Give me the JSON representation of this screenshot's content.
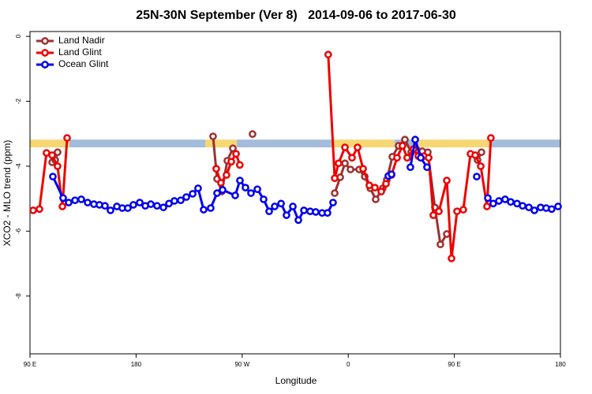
{
  "chart_data": {
    "type": "line",
    "title": "25N-30N September (Ver 8)   2014-09-06 to 2017-06-30",
    "x_label": "Longitude",
    "y_label": "XCO2 - MLO trend (ppm)",
    "xlim": [
      90,
      540
    ],
    "ylim": [
      -9.78,
      0.15
    ],
    "xticks": [
      {
        "value": 90,
        "label": "90 E"
      },
      180,
      {
        "value": 270,
        "label": "90 W"
      },
      {
        "value": 360,
        "label": "0"
      },
      {
        "value": 450,
        "label": "90 E"
      },
      {
        "value": 540,
        "label": "180"
      }
    ],
    "yticks": [
      0,
      -2,
      -4,
      -6,
      -8
    ],
    "legend": "top-left",
    "band": {
      "ylim": [
        -3.42,
        -3.18
      ],
      "segments": [
        {
          "from": 90,
          "to": 123.5,
          "color": "#f7d774"
        },
        {
          "from": 123.5,
          "to": 238.7,
          "color": "#a4bcdc"
        },
        {
          "from": 238.7,
          "to": 265.4,
          "color": "#f7d774"
        },
        {
          "from": 265.4,
          "to": 345.8,
          "color": "#a4bcdc"
        },
        {
          "from": 345.8,
          "to": 399.4,
          "color": "#f7d774"
        },
        {
          "from": 399.4,
          "to": 419.4,
          "color": "#a4bcdc"
        },
        {
          "from": 419.4,
          "to": 479.7,
          "color": "#f7d774"
        },
        {
          "from": 479.7,
          "to": 540,
          "color": "#a4bcdc"
        }
      ]
    },
    "series": [
      {
        "name": "Land Nadir",
        "color": "#9e3030",
        "x": [
          108.8,
          111.4,
          113.4,
          null,
          245.3,
          248.7,
          252.7,
          257.4,
          262.1,
          null,
          278.8,
          null,
          348.5,
          353.2,
          357.2,
          361.9,
          369.3,
          374,
          378.7,
          383.3,
          389.3,
          392.7,
          397.4,
          402.7,
          408.1,
          413.4,
          418.1,
          422.8,
          427.5,
          433.5,
          438.2,
          443.6,
          null,
          469.7,
          473
        ],
        "values": [
          -3.88,
          -3.81,
          -3.57,
          null,
          -3.08,
          -4.39,
          -4.78,
          -3.83,
          -3.45,
          null,
          -3.01,
          null,
          -4.83,
          -4.34,
          -3.91,
          -4.1,
          -4.1,
          -4.32,
          -4.68,
          -5.02,
          -4.68,
          -4.42,
          -3.71,
          -3.37,
          -3.18,
          -3.57,
          -3.5,
          -3.54,
          -3.57,
          -5.27,
          -6.41,
          -6.09,
          null,
          -3.81,
          -3.57
        ]
      },
      {
        "name": "Land Glint",
        "color": "#ee0000",
        "x": [
          92.7,
          98,
          104,
          108.8,
          113.4,
          117.5,
          121.5,
          null,
          248,
          252,
          256.7,
          260.8,
          264.8,
          268,
          null,
          343,
          348.5,
          351.8,
          357.2,
          363.2,
          367.9,
          372.6,
          377.9,
          382.6,
          388,
          392,
          396.7,
          401.4,
          406,
          410,
          415.4,
          419.4,
          424.1,
          428.2,
          432.2,
          436.9,
          443.6,
          447.6,
          452.3,
          457.6,
          463.7,
          467.7,
          472.4,
          477.7,
          481
        ],
        "values": [
          -5.36,
          -5.32,
          -3.59,
          -3.66,
          -4.0,
          -5.24,
          -3.13,
          null,
          -4.08,
          -4.51,
          -4.27,
          -3.86,
          -3.62,
          -3.96,
          null,
          -0.56,
          -4.37,
          -3.91,
          -3.42,
          -3.74,
          -3.42,
          -4.08,
          -4.59,
          -4.66,
          -4.78,
          -4.54,
          -4.27,
          -3.74,
          -3.37,
          -3.74,
          -3.47,
          -3.69,
          -3.69,
          -3.74,
          -5.51,
          -5.39,
          -4.44,
          -6.84,
          -5.39,
          -5.34,
          -3.62,
          -3.66,
          -4.0,
          -5.24,
          -3.13
        ]
      },
      {
        "name": "Ocean Glint",
        "color": "#0000ee",
        "x": [
          109.4,
          118.1,
          122.8,
          128.2,
          133.5,
          138.9,
          144.2,
          148.9,
          153.6,
          158.3,
          163.7,
          168.3,
          173,
          177.7,
          183.1,
          187.8,
          192.5,
          197.8,
          203.2,
          207.9,
          212.5,
          217.9,
          222.6,
          228,
          232.6,
          237.3,
          243.3,
          248.7,
          253.4,
          264.1,
          268.1,
          272.8,
          277.5,
          282.9,
          288.2,
          292.9,
          297.6,
          303,
          307.6,
          313,
          317.7,
          322.4,
          327.7,
          332.4,
          337.8,
          342.4,
          347.1,
          null,
          394,
          396.7,
          null,
          412.7,
          416.8,
          421.5,
          426.8,
          null,
          469,
          null,
          478.4,
          483,
          487.8,
          493.1,
          497.8,
          503.2,
          507.9,
          513.2,
          517.9,
          523.2,
          527.9,
          532.6,
          538
        ],
        "values": [
          -4.32,
          -4.98,
          -5.12,
          -5.05,
          -5.02,
          -5.12,
          -5.17,
          -5.19,
          -5.22,
          -5.36,
          -5.24,
          -5.29,
          -5.29,
          -5.19,
          -5.12,
          -5.22,
          -5.17,
          -5.22,
          -5.27,
          -5.15,
          -5.07,
          -5.05,
          -4.95,
          -4.85,
          -4.68,
          -5.34,
          -5.29,
          -4.83,
          -4.73,
          -4.9,
          -4.44,
          -4.66,
          -4.83,
          -4.71,
          -5.02,
          -5.39,
          -5.24,
          -5.15,
          -5.51,
          -5.24,
          -5.66,
          -5.36,
          -5.39,
          -5.41,
          -5.44,
          -5.44,
          -5.12,
          null,
          -4.3,
          -4.25,
          null,
          -4.03,
          -3.18,
          -3.74,
          -4.03,
          null,
          -4.32,
          null,
          -4.98,
          -5.15,
          -5.07,
          -5.02,
          -5.1,
          -5.15,
          -5.22,
          -5.27,
          -5.36,
          -5.27,
          -5.29,
          -5.32,
          -5.24
        ]
      }
    ]
  }
}
